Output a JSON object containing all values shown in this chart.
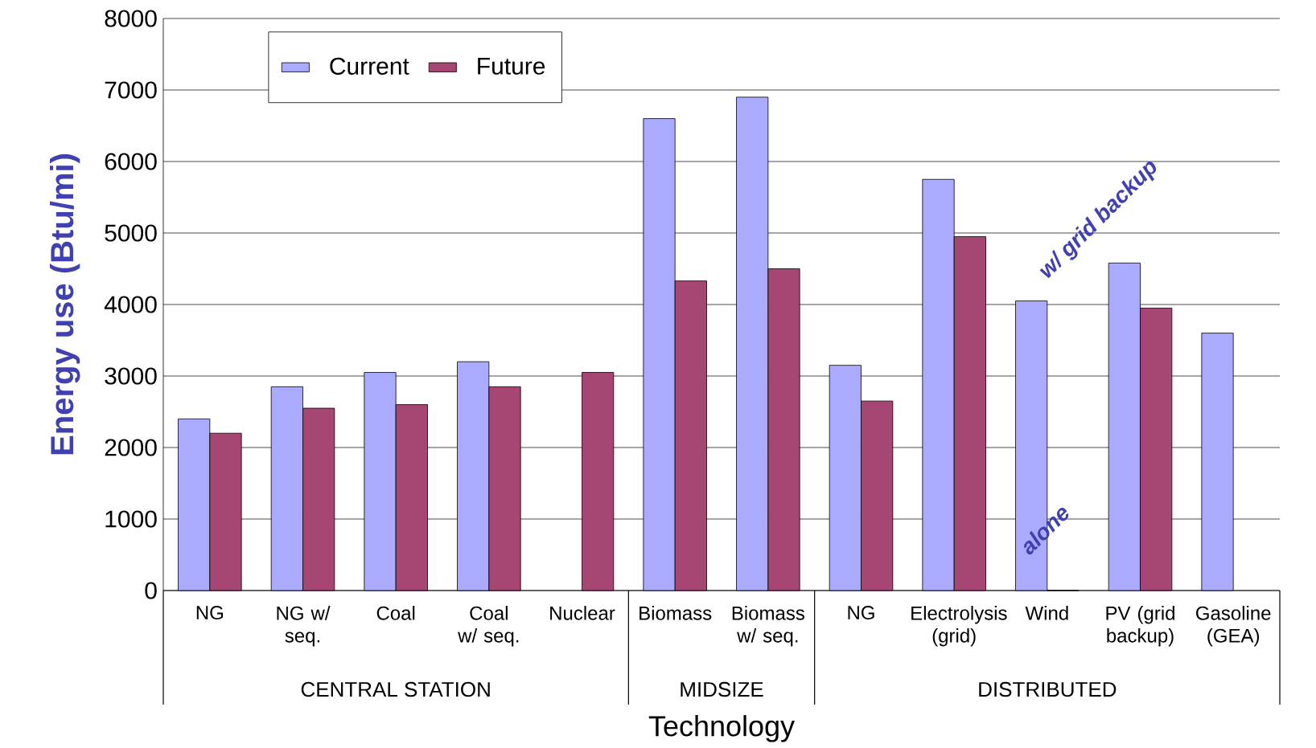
{
  "chart_data": {
    "type": "bar",
    "xlabel": "Technology",
    "ylabel": "Energy use (Btu/mi)",
    "categories": [
      "NG",
      "NG w/ seq.",
      "Coal",
      "Coal w/ seq.",
      "Nuclear",
      "Biomass",
      "Biomass w/ seq.",
      "NG",
      "Electrolysis (grid)",
      "Wind",
      "PV (grid backup)",
      "Gasoline (GEA)"
    ],
    "series": [
      {
        "name": "Current",
        "color": "#aaaaff",
        "values": [
          2400,
          2850,
          3050,
          3200,
          null,
          6600,
          6900,
          3150,
          5750,
          4050,
          4580,
          3600
        ]
      },
      {
        "name": "Future",
        "color": "#a64673",
        "values": [
          2200,
          2550,
          2600,
          2850,
          3050,
          4330,
          4500,
          2650,
          4950,
          0,
          3950,
          null
        ]
      }
    ],
    "ylim": [
      0,
      8000
    ],
    "yticks": [
      0,
      1000,
      2000,
      3000,
      4000,
      5000,
      6000,
      7000,
      8000
    ],
    "grid": "y",
    "legend": "top left",
    "annotations": [
      "CENTRAL STATION",
      "MIDSIZE",
      "DISTRIBUTED",
      {
        "text": "w/ grid backup",
        "x": "Wind",
        "y": 4050
      },
      {
        "text": "alone",
        "x": "Wind",
        "y": 0
      }
    ]
  }
}
